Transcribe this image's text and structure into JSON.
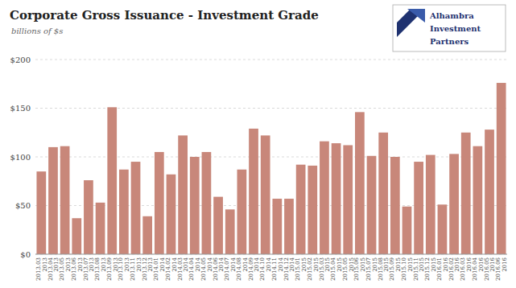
{
  "chart_data": {
    "type": "bar",
    "title": "Corporate Gross Issuance - Investment Grade",
    "subtitle": "billions of $s",
    "annotations": [
      "Alhambra",
      "Investment",
      "Partners"
    ],
    "categories": [
      "2013.03\n2013",
      "2013.04\n2013",
      "2013.05\n2013",
      "2013.06\n2013",
      "2013.07\n2013",
      "2013.08\n2013",
      "2013.09\n2013",
      "2013.10\n2013",
      "2013.11\n2013",
      "2013.12\n2013",
      "2014.01\n2014",
      "2014.02\n2014",
      "2014.03\n2014",
      "2014.04\n2014",
      "2014.05\n2014",
      "2014.06\n2014",
      "2014.07\n2014",
      "2014.08\n2014",
      "2014.09\n2014",
      "2014.10\n2014",
      "2014.11\n2014",
      "2014.12\n2014",
      "2015.01\n2015",
      "2015.02\n2015",
      "2015.03\n2015",
      "2015.04\n2015",
      "2015.05\n2015",
      "2015.06\n2015",
      "2015.07\n2015",
      "2015.08\n2015",
      "2015.09\n2015",
      "2015.10\n2015",
      "2015.11\n2015",
      "2015.12\n2015",
      "2016.01\n2016",
      "2016.02\n2016",
      "2016.03\n2016",
      "2016.04\n2016",
      "2016.05\n2016",
      "2016.06\n2016"
    ],
    "values": [
      85,
      110,
      111,
      37,
      76,
      53,
      151,
      87,
      95,
      39,
      105,
      82,
      122,
      100,
      105,
      59,
      46,
      87,
      129,
      122,
      57,
      57,
      92,
      91,
      116,
      114,
      112,
      146,
      101,
      125,
      100,
      49,
      95,
      102,
      51,
      103,
      125,
      111,
      128,
      176
    ],
    "color": "#C8877A",
    "ylim": [
      0,
      200
    ],
    "yticks": [
      {
        "value": 0,
        "label": "$0"
      },
      {
        "value": 50,
        "label": "$50"
      },
      {
        "value": 100,
        "label": "$100"
      },
      {
        "value": 150,
        "label": "$150"
      },
      {
        "value": 200,
        "label": "$200"
      }
    ],
    "grid": true
  }
}
